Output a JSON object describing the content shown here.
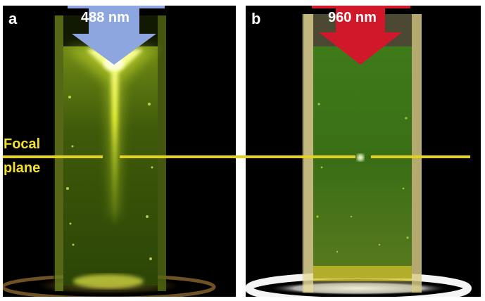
{
  "panel_a": {
    "letter": "a",
    "wavelength_label": "488 nm",
    "arrow_color": "#8ea6df"
  },
  "panel_b": {
    "letter": "b",
    "wavelength_label": "960 nm",
    "arrow_color": "#d1182a"
  },
  "focal_plane": {
    "line1": "Focal",
    "line2": "plane",
    "color": "#e3d21e"
  }
}
